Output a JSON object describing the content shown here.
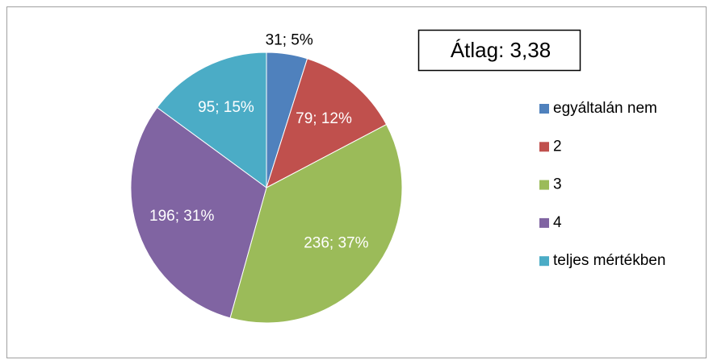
{
  "chart_data": {
    "type": "pie",
    "categories": [
      "egyáltalán nem",
      "2",
      "3",
      "4",
      "teljes mértékben"
    ],
    "values": [
      31,
      79,
      236,
      196,
      95
    ],
    "value_labels": [
      "31; 5%",
      "79; 12%",
      "236; 37%",
      "196; 31%",
      "95; 15%"
    ],
    "colors": [
      "#4f81bd",
      "#c0504d",
      "#9bbb59",
      "#8064a2",
      "#4bacc6"
    ],
    "annotation": "Átlag: 3,38",
    "legend": "right"
  }
}
